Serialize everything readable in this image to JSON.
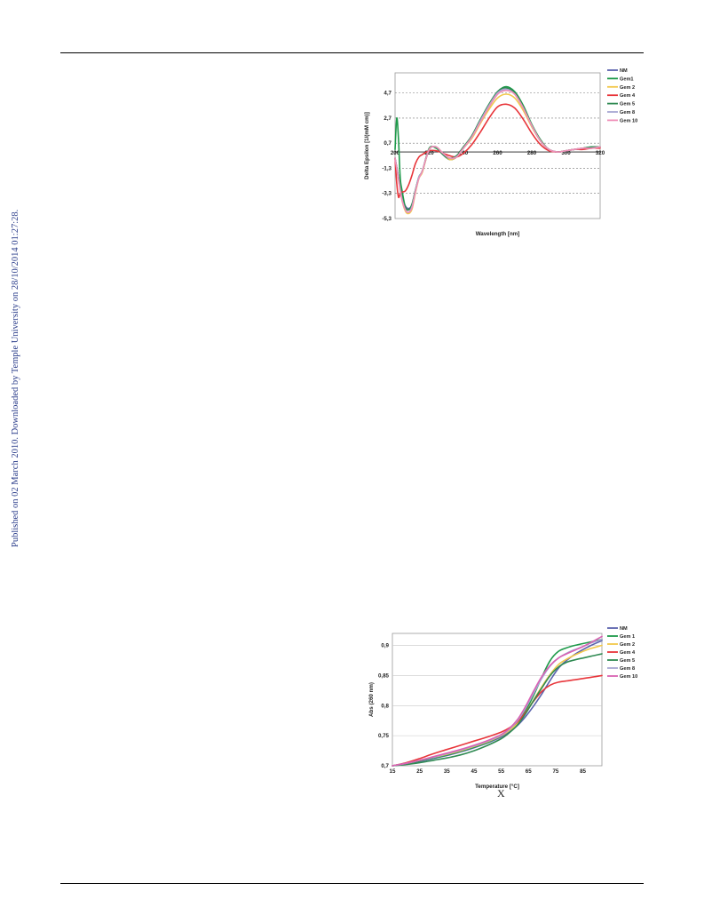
{
  "side_note": "Published on 02 March 2010. Downloaded by Temple University on 28/10/2014 01:27:28.",
  "figure_label": "X",
  "chart_data": [
    {
      "type": "line",
      "xlabel": "Wavelength [nm]",
      "ylabel": "Delta Epsilon [1/(mM cm)]",
      "xlim": [
        200,
        320
      ],
      "ylim": [
        -5.3,
        6.3
      ],
      "xticks": [
        "200",
        "220",
        "240",
        "260",
        "280",
        "300",
        "320"
      ],
      "yticks": [
        "4,7",
        "2,7",
        "0,7",
        "-1,3",
        "-3,3",
        "-5,3"
      ],
      "ytick_values": [
        4.7,
        2.7,
        0.7,
        -1.3,
        -3.3,
        -5.3
      ],
      "grid": "dashed horizontal",
      "legend": "right",
      "colors": [
        "#5b63ad",
        "#1e9a4a",
        "#f2c84b",
        "#e8353a",
        "#2f8a52",
        "#a7a7d3",
        "#ef8fb8"
      ],
      "series": [
        {
          "name": "NM",
          "x": [
            200,
            202,
            204,
            206,
            208,
            210,
            212,
            214,
            216,
            220,
            224,
            228,
            232,
            236,
            240,
            245,
            250,
            255,
            260,
            265,
            270,
            275,
            280,
            285,
            290,
            295,
            300,
            305,
            310,
            315,
            320
          ],
          "y": [
            -0.5,
            -2,
            -3.5,
            -4.3,
            -4.5,
            -4.2,
            -3,
            -2,
            -1.5,
            0.2,
            0.4,
            -0.2,
            -0.6,
            -0.4,
            0.3,
            1.2,
            2.4,
            3.6,
            4.6,
            5,
            4.6,
            3.5,
            2.1,
            0.9,
            0.2,
            0.0,
            0.1,
            0.2,
            0.3,
            0.3,
            0.4
          ]
        },
        {
          "name": "Gem1",
          "x": [
            200,
            201,
            202,
            203,
            204,
            206,
            208,
            210,
            212,
            214,
            216,
            220,
            224,
            228,
            232,
            236,
            240,
            245,
            250,
            255,
            260,
            265,
            270,
            275,
            280,
            285,
            290,
            295,
            300,
            305,
            310,
            315,
            320
          ],
          "y": [
            0.2,
            2.7,
            1,
            -2,
            -3,
            -4.4,
            -4.6,
            -4.2,
            -3.1,
            -2,
            -1.5,
            0.3,
            0.3,
            -0.2,
            -0.6,
            -0.4,
            0.3,
            1.3,
            2.6,
            3.8,
            4.8,
            5.2,
            4.8,
            3.7,
            2.2,
            1,
            0.2,
            0,
            0.1,
            0.2,
            0.3,
            0.4,
            0.4
          ]
        },
        {
          "name": "Gem 2",
          "x": [
            200,
            202,
            204,
            206,
            208,
            210,
            212,
            214,
            216,
            220,
            224,
            228,
            232,
            236,
            240,
            245,
            250,
            255,
            260,
            265,
            270,
            275,
            280,
            285,
            290,
            295,
            300,
            305,
            310,
            315,
            320
          ],
          "y": [
            -0.5,
            -2.2,
            -3.8,
            -4.7,
            -4.9,
            -4.5,
            -3.2,
            -2.1,
            -1.6,
            0.2,
            0.4,
            -0.1,
            -0.6,
            -0.4,
            0.3,
            1.1,
            2.3,
            3.4,
            4.3,
            4.6,
            4.3,
            3.3,
            2,
            0.9,
            0.2,
            0.0,
            0.1,
            0.2,
            0.3,
            0.3,
            0.4
          ]
        },
        {
          "name": "Gem 4",
          "x": [
            200,
            201,
            202,
            203,
            204,
            206,
            208,
            210,
            212,
            214,
            216,
            220,
            224,
            228,
            232,
            236,
            240,
            245,
            250,
            255,
            260,
            265,
            270,
            275,
            280,
            285,
            290,
            295,
            300,
            305,
            310,
            315,
            320
          ],
          "y": [
            -0.5,
            -2.5,
            -3.6,
            -3.3,
            -3.2,
            -3.1,
            -2.6,
            -1.8,
            -0.9,
            -0.4,
            -0.2,
            0.1,
            0.1,
            -0.1,
            -0.3,
            -0.4,
            -0.1,
            0.6,
            1.6,
            2.7,
            3.6,
            3.8,
            3.5,
            2.6,
            1.5,
            0.6,
            0.1,
            0,
            0.1,
            0.2,
            0.2,
            0.3,
            0.3
          ]
        },
        {
          "name": "Gem 5",
          "x": [
            200,
            202,
            204,
            206,
            208,
            210,
            212,
            214,
            216,
            220,
            224,
            228,
            232,
            236,
            240,
            245,
            250,
            255,
            260,
            265,
            270,
            275,
            280,
            285,
            290,
            295,
            300,
            305,
            310,
            315,
            320
          ],
          "y": [
            -0.5,
            -2,
            -3.6,
            -4.4,
            -4.6,
            -4.1,
            -3,
            -2,
            -1.5,
            0.2,
            0.4,
            -0.2,
            -0.5,
            -0.3,
            0.4,
            1.3,
            2.6,
            3.8,
            4.8,
            5.1,
            4.7,
            3.6,
            2.1,
            0.9,
            0.2,
            0,
            0.1,
            0.2,
            0.3,
            0.4,
            0.4
          ]
        },
        {
          "name": "Gem 8",
          "x": [
            200,
            202,
            204,
            206,
            208,
            210,
            212,
            214,
            216,
            220,
            224,
            228,
            232,
            236,
            240,
            245,
            250,
            255,
            260,
            265,
            270,
            275,
            280,
            285,
            290,
            295,
            300,
            305,
            310,
            315,
            320
          ],
          "y": [
            -0.5,
            -2.1,
            -3.7,
            -4.6,
            -4.8,
            -4.3,
            -3.1,
            -2,
            -1.5,
            0.2,
            0.4,
            -0.1,
            -0.5,
            -0.4,
            0.3,
            1.2,
            2.5,
            3.7,
            4.7,
            5,
            4.6,
            3.5,
            2.1,
            0.9,
            0.2,
            0,
            0.1,
            0.2,
            0.3,
            0.3,
            0.4
          ]
        },
        {
          "name": "Gem 10",
          "x": [
            200,
            202,
            204,
            206,
            208,
            210,
            212,
            214,
            216,
            220,
            224,
            228,
            232,
            236,
            240,
            245,
            250,
            255,
            260,
            265,
            270,
            275,
            280,
            285,
            290,
            295,
            300,
            305,
            310,
            315,
            320
          ],
          "y": [
            -0.5,
            -2.2,
            -3.8,
            -4.6,
            -4.8,
            -4.4,
            -3.1,
            -2.1,
            -1.5,
            0.2,
            0.4,
            -0.1,
            -0.5,
            -0.4,
            0.3,
            1.2,
            2.4,
            3.6,
            4.6,
            4.9,
            4.6,
            3.5,
            2.1,
            0.9,
            0.2,
            0,
            0.1,
            0.2,
            0.3,
            0.3,
            0.4
          ]
        }
      ]
    },
    {
      "type": "line",
      "xlabel": "Temperature [°C]",
      "ylabel": "Abs (260 nm)",
      "xlim": [
        15,
        92
      ],
      "ylim": [
        0.7,
        0.92
      ],
      "xticks": [
        "15",
        "25",
        "35",
        "45",
        "55",
        "65",
        "75",
        "85"
      ],
      "xtick_values": [
        15,
        25,
        35,
        45,
        55,
        65,
        75,
        85
      ],
      "yticks": [
        "0,9",
        "0,85",
        "0,8",
        "0,75",
        "0,7"
      ],
      "ytick_values": [
        0.9,
        0.85,
        0.8,
        0.75,
        0.7
      ],
      "grid": "horizontal",
      "legend": "right",
      "colors": [
        "#5b63ad",
        "#1e9a4a",
        "#f2c84b",
        "#e8353a",
        "#2f8a52",
        "#a7a7d3",
        "#d962b3"
      ],
      "series": [
        {
          "name": "NM",
          "x": [
            15,
            20,
            25,
            30,
            35,
            40,
            45,
            50,
            55,
            58,
            61,
            64,
            67,
            70,
            73,
            76,
            79,
            82,
            85,
            88,
            92
          ],
          "y": [
            0.7,
            0.703,
            0.707,
            0.712,
            0.717,
            0.723,
            0.73,
            0.738,
            0.748,
            0.756,
            0.767,
            0.782,
            0.8,
            0.82,
            0.842,
            0.862,
            0.875,
            0.885,
            0.893,
            0.9,
            0.908
          ]
        },
        {
          "name": "Gem 1",
          "x": [
            15,
            20,
            25,
            30,
            35,
            40,
            45,
            50,
            55,
            58,
            61,
            64,
            67,
            70,
            73,
            76,
            79,
            82,
            85,
            88,
            92
          ],
          "y": [
            0.7,
            0.704,
            0.708,
            0.713,
            0.718,
            0.724,
            0.731,
            0.739,
            0.75,
            0.759,
            0.772,
            0.792,
            0.818,
            0.848,
            0.875,
            0.89,
            0.896,
            0.9,
            0.903,
            0.906,
            0.91
          ]
        },
        {
          "name": "Gem 2",
          "x": [
            15,
            20,
            25,
            30,
            35,
            40,
            45,
            50,
            55,
            58,
            61,
            64,
            67,
            70,
            73,
            76,
            79,
            82,
            85,
            88,
            92
          ],
          "y": [
            0.7,
            0.704,
            0.709,
            0.714,
            0.719,
            0.725,
            0.732,
            0.74,
            0.75,
            0.759,
            0.771,
            0.789,
            0.81,
            0.832,
            0.852,
            0.868,
            0.877,
            0.884,
            0.89,
            0.895,
            0.9
          ]
        },
        {
          "name": "Gem 4",
          "x": [
            15,
            20,
            25,
            30,
            35,
            40,
            45,
            50,
            55,
            58,
            61,
            64,
            67,
            70,
            73,
            76,
            79,
            82,
            85,
            88,
            92
          ],
          "y": [
            0.7,
            0.705,
            0.712,
            0.72,
            0.727,
            0.734,
            0.741,
            0.748,
            0.756,
            0.763,
            0.773,
            0.789,
            0.808,
            0.824,
            0.834,
            0.839,
            0.841,
            0.843,
            0.845,
            0.847,
            0.85
          ]
        },
        {
          "name": "Gem 5",
          "x": [
            15,
            20,
            25,
            30,
            35,
            40,
            45,
            50,
            55,
            58,
            61,
            64,
            67,
            70,
            73,
            76,
            79,
            82,
            85,
            88,
            92
          ],
          "y": [
            0.7,
            0.702,
            0.705,
            0.709,
            0.713,
            0.718,
            0.725,
            0.734,
            0.745,
            0.755,
            0.768,
            0.787,
            0.809,
            0.83,
            0.85,
            0.864,
            0.872,
            0.876,
            0.879,
            0.882,
            0.886
          ]
        },
        {
          "name": "Gem 8",
          "x": [
            15,
            20,
            25,
            30,
            35,
            40,
            45,
            50,
            55,
            58,
            61,
            64,
            67,
            70,
            73,
            76,
            79,
            82,
            85,
            88,
            92
          ],
          "y": [
            0.7,
            0.704,
            0.709,
            0.714,
            0.72,
            0.726,
            0.733,
            0.741,
            0.751,
            0.761,
            0.775,
            0.796,
            0.821,
            0.846,
            0.866,
            0.879,
            0.887,
            0.893,
            0.898,
            0.904,
            0.91
          ]
        },
        {
          "name": "Gem 10",
          "x": [
            15,
            20,
            25,
            30,
            35,
            40,
            45,
            50,
            55,
            58,
            61,
            64,
            67,
            70,
            73,
            76,
            79,
            82,
            85,
            88,
            92
          ],
          "y": [
            0.7,
            0.704,
            0.709,
            0.715,
            0.721,
            0.727,
            0.734,
            0.742,
            0.752,
            0.762,
            0.777,
            0.799,
            0.825,
            0.849,
            0.867,
            0.879,
            0.886,
            0.892,
            0.898,
            0.905,
            0.915
          ]
        }
      ]
    }
  ]
}
